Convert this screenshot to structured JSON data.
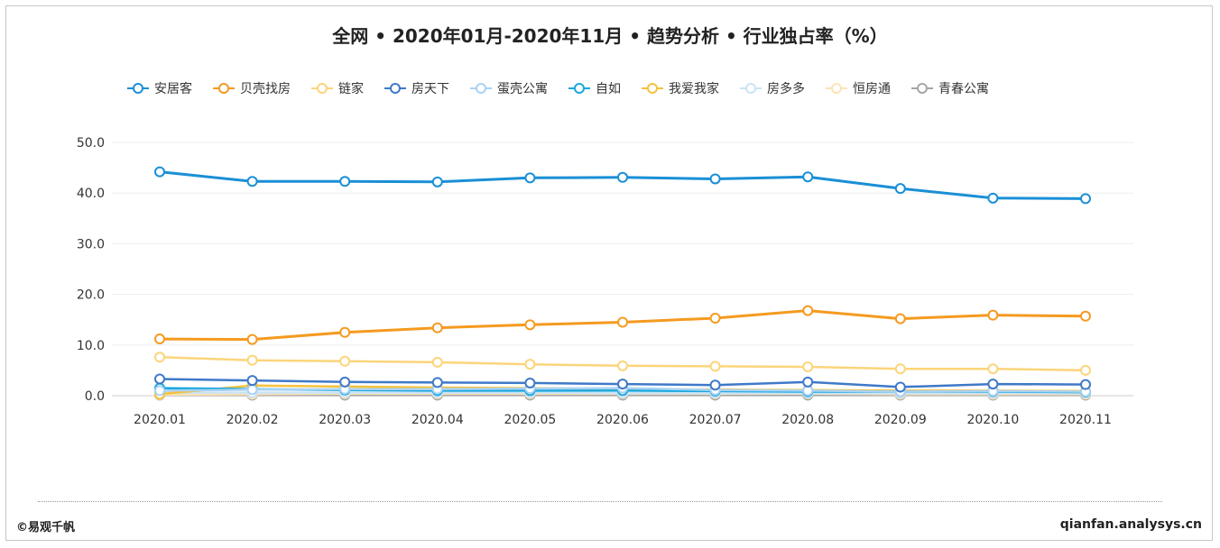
{
  "header": {
    "title": "全网 • 2020年01月-2020年11月 • 趋势分析 • 行业独占率（%）"
  },
  "footer": {
    "copyright": "©易观千帆",
    "site": "qianfan.analysys.cn"
  },
  "chart_data": {
    "type": "line",
    "title": "全网 • 2020年01月-2020年11月 • 趋势分析 • 行业独占率（%）",
    "xlabel": "",
    "ylabel": "",
    "ylim": [
      0,
      50
    ],
    "yticks": [
      "0.0",
      "10.0",
      "20.0",
      "30.0",
      "40.0",
      "50.0"
    ],
    "categories": [
      "2020.01",
      "2020.02",
      "2020.03",
      "2020.04",
      "2020.05",
      "2020.06",
      "2020.07",
      "2020.08",
      "2020.09",
      "2020.10",
      "2020.11"
    ],
    "legend_position": "top",
    "grid": true,
    "series": [
      {
        "name": "安居客",
        "color": "#1a8fd6",
        "values": [
          44.2,
          42.3,
          42.3,
          42.2,
          43.0,
          43.1,
          42.8,
          43.2,
          40.9,
          39.0,
          38.9
        ]
      },
      {
        "name": "贝壳找房",
        "color": "#f59a1f",
        "values": [
          11.2,
          11.1,
          12.5,
          13.4,
          14.0,
          14.5,
          15.3,
          16.8,
          15.2,
          15.9,
          15.7
        ]
      },
      {
        "name": "链家",
        "color": "#fbd57a",
        "values": [
          7.6,
          7.0,
          6.8,
          6.6,
          6.2,
          5.9,
          5.8,
          5.7,
          5.3,
          5.3,
          5.0
        ]
      },
      {
        "name": "房天下",
        "color": "#3f79c8",
        "values": [
          3.3,
          3.0,
          2.7,
          2.6,
          2.5,
          2.3,
          2.1,
          2.7,
          1.7,
          2.3,
          2.2
        ]
      },
      {
        "name": "蛋壳公寓",
        "color": "#a9d2f2",
        "values": [
          1.0,
          1.2,
          1.3,
          1.3,
          1.4,
          1.5,
          1.1,
          1.0,
          0.8,
          0.9,
          0.8
        ]
      },
      {
        "name": "自如",
        "color": "#19a7e0",
        "values": [
          1.5,
          1.3,
          1.1,
          1.0,
          1.0,
          1.0,
          0.9,
          0.8,
          0.8,
          0.8,
          0.7
        ]
      },
      {
        "name": "我爱我家",
        "color": "#f5c23c",
        "values": [
          0.3,
          2.0,
          1.8,
          1.6,
          1.5,
          1.3,
          1.2,
          1.1,
          1.0,
          1.0,
          0.9
        ]
      },
      {
        "name": "房多多",
        "color": "#c9e3f5",
        "values": [
          0.6,
          0.6,
          0.6,
          0.6,
          0.6,
          0.5,
          0.5,
          0.5,
          0.5,
          0.5,
          0.5
        ]
      },
      {
        "name": "恒房通",
        "color": "#fde3b4",
        "values": [
          0.2,
          0.3,
          0.4,
          0.4,
          0.4,
          0.4,
          0.4,
          0.4,
          0.3,
          0.3,
          0.3
        ]
      },
      {
        "name": "青春公寓",
        "color": "#a6a6a6",
        "values": [
          0.1,
          0.1,
          0.1,
          0.1,
          0.1,
          0.1,
          0.1,
          0.1,
          0.1,
          0.1,
          0.1
        ]
      }
    ]
  }
}
